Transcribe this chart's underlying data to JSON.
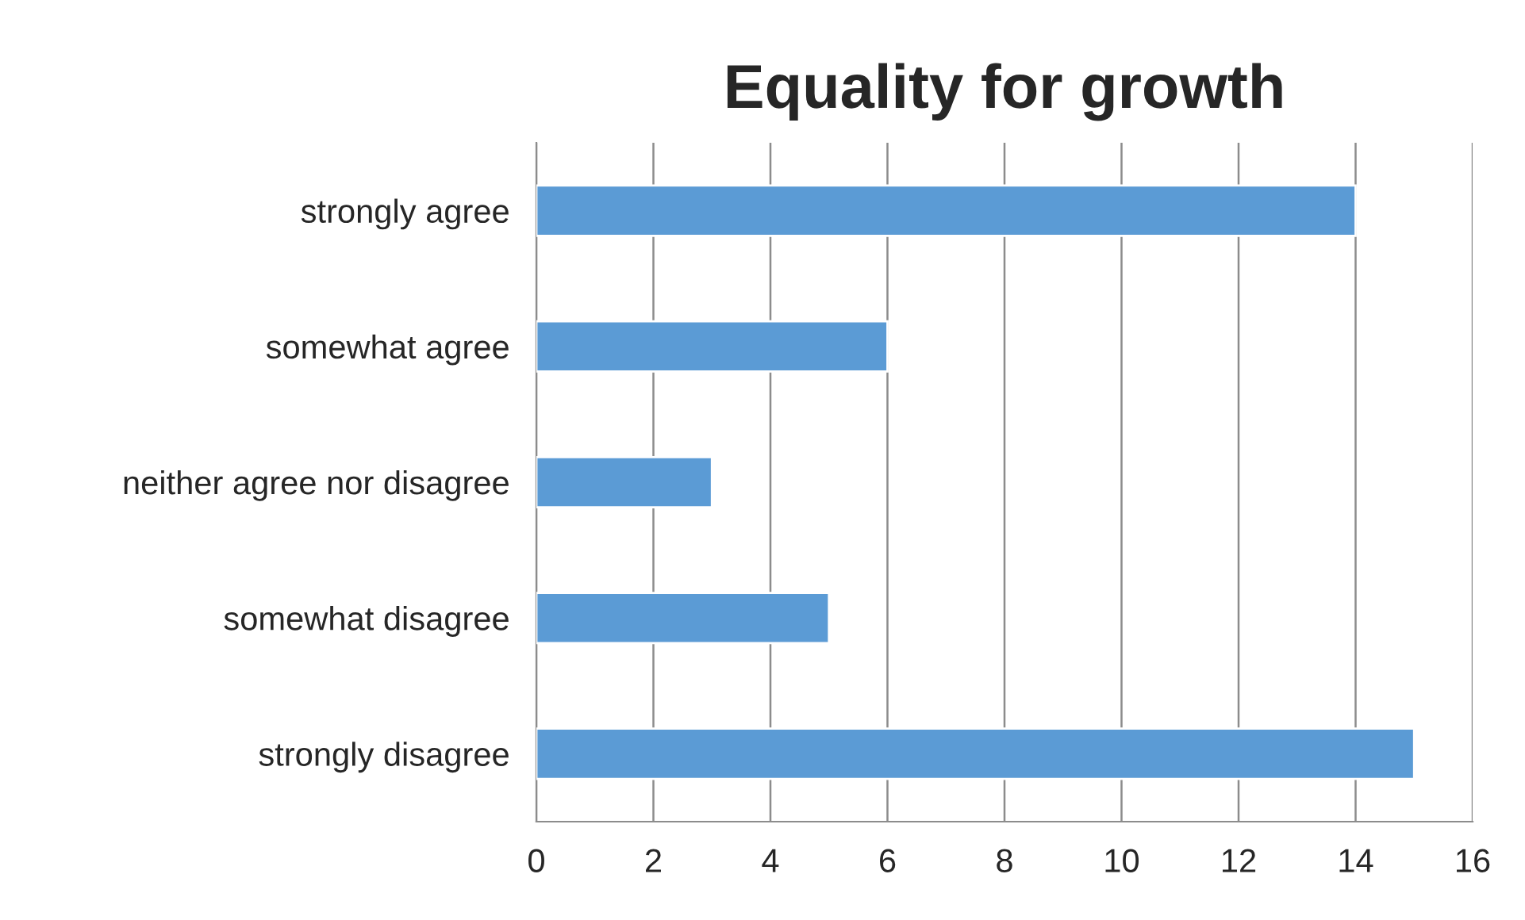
{
  "chart_data": {
    "type": "bar",
    "orientation": "horizontal",
    "title": "Equality for growth",
    "categories": [
      "strongly agree",
      "somewhat agree",
      "neither agree nor disagree",
      "somewhat disagree",
      "strongly disagree"
    ],
    "values": [
      14,
      6,
      3,
      5,
      15
    ],
    "color": "#5b9bd5",
    "xlim": [
      0,
      16
    ],
    "xticks": [
      0,
      2,
      4,
      6,
      8,
      10,
      12,
      14,
      16
    ],
    "grid": "x",
    "legend": false
  }
}
